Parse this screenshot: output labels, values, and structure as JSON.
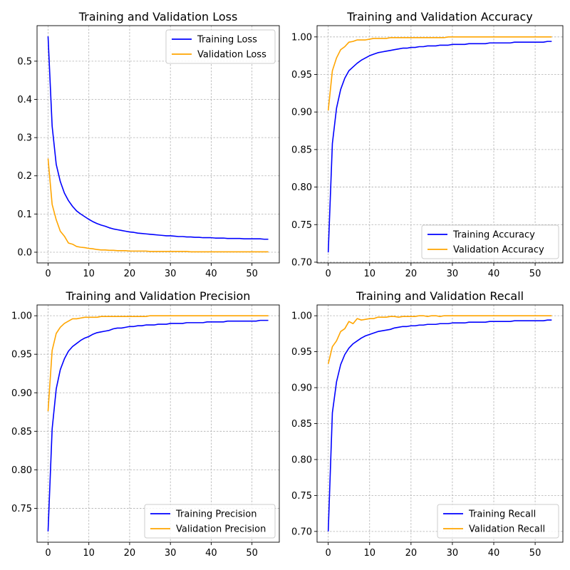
{
  "chart_data": [
    {
      "type": "line",
      "title": "Training and Validation Loss",
      "xlabel": "",
      "ylabel": "",
      "xlim": [
        -2.7,
        56.7
      ],
      "ylim": [
        -0.028,
        0.593
      ],
      "xticks": [
        0,
        10,
        20,
        30,
        40,
        50
      ],
      "yticks": [
        0.0,
        0.1,
        0.2,
        0.3,
        0.4,
        0.5
      ],
      "ytick_labels": [
        "0.0",
        "0.1",
        "0.2",
        "0.3",
        "0.4",
        "0.5"
      ],
      "grid": true,
      "legend_position": "upper right",
      "series": [
        {
          "name": "Training Loss",
          "color": "#0000ff",
          "x": [
            0,
            1,
            2,
            3,
            4,
            5,
            6,
            7,
            8,
            9,
            10,
            11,
            12,
            13,
            14,
            15,
            16,
            17,
            18,
            19,
            20,
            21,
            22,
            23,
            24,
            25,
            26,
            27,
            28,
            29,
            30,
            31,
            32,
            33,
            34,
            35,
            36,
            37,
            38,
            39,
            40,
            41,
            42,
            43,
            44,
            45,
            46,
            47,
            48,
            49,
            50,
            51,
            52,
            53,
            54
          ],
          "values": [
            0.565,
            0.33,
            0.23,
            0.185,
            0.155,
            0.135,
            0.12,
            0.108,
            0.1,
            0.093,
            0.086,
            0.08,
            0.075,
            0.071,
            0.068,
            0.064,
            0.061,
            0.059,
            0.057,
            0.055,
            0.053,
            0.052,
            0.05,
            0.049,
            0.048,
            0.047,
            0.046,
            0.045,
            0.044,
            0.043,
            0.043,
            0.042,
            0.041,
            0.041,
            0.04,
            0.04,
            0.039,
            0.039,
            0.038,
            0.038,
            0.038,
            0.037,
            0.037,
            0.037,
            0.036,
            0.036,
            0.036,
            0.036,
            0.035,
            0.035,
            0.035,
            0.035,
            0.035,
            0.034,
            0.034
          ]
        },
        {
          "name": "Validation Loss",
          "color": "#ffa500",
          "x": [
            0,
            1,
            2,
            3,
            4,
            5,
            6,
            7,
            8,
            9,
            10,
            11,
            12,
            13,
            14,
            15,
            16,
            17,
            18,
            19,
            20,
            21,
            22,
            23,
            24,
            25,
            26,
            27,
            28,
            29,
            30,
            31,
            32,
            33,
            34,
            35,
            36,
            37,
            38,
            39,
            40,
            41,
            42,
            43,
            44,
            45,
            46,
            47,
            48,
            49,
            50,
            51,
            52,
            53,
            54
          ],
          "values": [
            0.245,
            0.125,
            0.085,
            0.055,
            0.042,
            0.024,
            0.021,
            0.015,
            0.013,
            0.012,
            0.01,
            0.009,
            0.007,
            0.006,
            0.006,
            0.005,
            0.005,
            0.004,
            0.004,
            0.004,
            0.003,
            0.003,
            0.003,
            0.003,
            0.003,
            0.002,
            0.002,
            0.002,
            0.002,
            0.002,
            0.002,
            0.002,
            0.002,
            0.002,
            0.002,
            0.001,
            0.001,
            0.001,
            0.001,
            0.001,
            0.001,
            0.001,
            0.001,
            0.001,
            0.001,
            0.001,
            0.001,
            0.001,
            0.001,
            0.001,
            0.001,
            0.001,
            0.001,
            0.001,
            0.001
          ]
        }
      ]
    },
    {
      "type": "line",
      "title": "Training and Validation Accuracy",
      "xlabel": "",
      "ylabel": "",
      "xlim": [
        -2.7,
        56.7
      ],
      "ylim": [
        0.699,
        1.015
      ],
      "xticks": [
        0,
        10,
        20,
        30,
        40,
        50
      ],
      "yticks": [
        0.7,
        0.75,
        0.8,
        0.85,
        0.9,
        0.95,
        1.0
      ],
      "ytick_labels": [
        "0.70",
        "0.75",
        "0.80",
        "0.85",
        "0.90",
        "0.95",
        "1.00"
      ],
      "grid": true,
      "legend_position": "lower right",
      "series": [
        {
          "name": "Training Accuracy",
          "color": "#0000ff",
          "x": [
            0,
            1,
            2,
            3,
            4,
            5,
            6,
            7,
            8,
            9,
            10,
            11,
            12,
            13,
            14,
            15,
            16,
            17,
            18,
            19,
            20,
            21,
            22,
            23,
            24,
            25,
            26,
            27,
            28,
            29,
            30,
            31,
            32,
            33,
            34,
            35,
            36,
            37,
            38,
            39,
            40,
            41,
            42,
            43,
            44,
            45,
            46,
            47,
            48,
            49,
            50,
            51,
            52,
            53,
            54
          ],
          "values": [
            0.713,
            0.858,
            0.905,
            0.93,
            0.945,
            0.955,
            0.96,
            0.965,
            0.969,
            0.972,
            0.975,
            0.977,
            0.979,
            0.98,
            0.981,
            0.982,
            0.983,
            0.984,
            0.985,
            0.985,
            0.986,
            0.986,
            0.987,
            0.987,
            0.988,
            0.988,
            0.988,
            0.989,
            0.989,
            0.989,
            0.99,
            0.99,
            0.99,
            0.99,
            0.991,
            0.991,
            0.991,
            0.991,
            0.991,
            0.992,
            0.992,
            0.992,
            0.992,
            0.992,
            0.992,
            0.993,
            0.993,
            0.993,
            0.993,
            0.993,
            0.993,
            0.993,
            0.993,
            0.994,
            0.994
          ]
        },
        {
          "name": "Validation Accuracy",
          "color": "#ffa500",
          "x": [
            0,
            1,
            2,
            3,
            4,
            5,
            6,
            7,
            8,
            9,
            10,
            11,
            12,
            13,
            14,
            15,
            16,
            17,
            18,
            19,
            20,
            21,
            22,
            23,
            24,
            25,
            26,
            27,
            28,
            29,
            30,
            31,
            32,
            33,
            34,
            35,
            36,
            37,
            38,
            39,
            40,
            41,
            42,
            43,
            44,
            45,
            46,
            47,
            48,
            49,
            50,
            51,
            52,
            53,
            54
          ],
          "values": [
            0.902,
            0.955,
            0.972,
            0.983,
            0.987,
            0.993,
            0.994,
            0.996,
            0.996,
            0.996,
            0.997,
            0.998,
            0.998,
            0.998,
            0.998,
            0.999,
            0.999,
            0.999,
            0.999,
            0.999,
            0.999,
            0.999,
            0.999,
            0.999,
            0.999,
            0.999,
            0.999,
            0.999,
            0.999,
            1.0,
            1.0,
            1.0,
            1.0,
            1.0,
            1.0,
            1.0,
            1.0,
            1.0,
            1.0,
            1.0,
            1.0,
            1.0,
            1.0,
            1.0,
            1.0,
            1.0,
            1.0,
            1.0,
            1.0,
            1.0,
            1.0,
            1.0,
            1.0,
            1.0,
            1.0
          ]
        }
      ]
    },
    {
      "type": "line",
      "title": "Training and Validation Precision",
      "xlabel": "",
      "ylabel": "",
      "xlim": [
        -2.7,
        56.7
      ],
      "ylim": [
        0.706,
        1.014
      ],
      "xticks": [
        0,
        10,
        20,
        30,
        40,
        50
      ],
      "yticks": [
        0.75,
        0.8,
        0.85,
        0.9,
        0.95,
        1.0
      ],
      "ytick_labels": [
        "0.75",
        "0.80",
        "0.85",
        "0.90",
        "0.95",
        "1.00"
      ],
      "grid": true,
      "legend_position": "lower right",
      "series": [
        {
          "name": "Training Precision",
          "color": "#0000ff",
          "x": [
            0,
            1,
            2,
            3,
            4,
            5,
            6,
            7,
            8,
            9,
            10,
            11,
            12,
            13,
            14,
            15,
            16,
            17,
            18,
            19,
            20,
            21,
            22,
            23,
            24,
            25,
            26,
            27,
            28,
            29,
            30,
            31,
            32,
            33,
            34,
            35,
            36,
            37,
            38,
            39,
            40,
            41,
            42,
            43,
            44,
            45,
            46,
            47,
            48,
            49,
            50,
            51,
            52,
            53,
            54
          ],
          "values": [
            0.72,
            0.853,
            0.905,
            0.93,
            0.944,
            0.954,
            0.96,
            0.964,
            0.968,
            0.971,
            0.973,
            0.976,
            0.978,
            0.979,
            0.98,
            0.981,
            0.983,
            0.984,
            0.984,
            0.985,
            0.986,
            0.986,
            0.987,
            0.987,
            0.988,
            0.988,
            0.988,
            0.989,
            0.989,
            0.989,
            0.99,
            0.99,
            0.99,
            0.99,
            0.991,
            0.991,
            0.991,
            0.991,
            0.991,
            0.992,
            0.992,
            0.992,
            0.992,
            0.992,
            0.993,
            0.993,
            0.993,
            0.993,
            0.993,
            0.993,
            0.993,
            0.993,
            0.994,
            0.994,
            0.994
          ]
        },
        {
          "name": "Validation Precision",
          "color": "#ffa500",
          "x": [
            0,
            1,
            2,
            3,
            4,
            5,
            6,
            7,
            8,
            9,
            10,
            11,
            12,
            13,
            14,
            15,
            16,
            17,
            18,
            19,
            20,
            21,
            22,
            23,
            24,
            25,
            26,
            27,
            28,
            29,
            30,
            31,
            32,
            33,
            34,
            35,
            36,
            37,
            38,
            39,
            40,
            41,
            42,
            43,
            44,
            45,
            46,
            47,
            48,
            49,
            50,
            51,
            52,
            53,
            54
          ],
          "values": [
            0.876,
            0.955,
            0.977,
            0.985,
            0.99,
            0.993,
            0.996,
            0.996,
            0.997,
            0.998,
            0.998,
            0.998,
            0.998,
            0.999,
            0.999,
            0.999,
            0.999,
            0.999,
            0.999,
            0.999,
            0.999,
            0.999,
            0.999,
            0.999,
            0.999,
            1.0,
            1.0,
            1.0,
            1.0,
            1.0,
            1.0,
            1.0,
            1.0,
            1.0,
            1.0,
            1.0,
            1.0,
            1.0,
            1.0,
            1.0,
            1.0,
            1.0,
            1.0,
            1.0,
            1.0,
            1.0,
            1.0,
            1.0,
            1.0,
            1.0,
            1.0,
            1.0,
            1.0,
            1.0,
            1.0
          ]
        }
      ]
    },
    {
      "type": "line",
      "title": "Training and Validation Recall",
      "xlabel": "",
      "ylabel": "",
      "xlim": [
        -2.7,
        56.7
      ],
      "ylim": [
        0.685,
        1.015
      ],
      "xticks": [
        0,
        10,
        20,
        30,
        40,
        50
      ],
      "yticks": [
        0.7,
        0.75,
        0.8,
        0.85,
        0.9,
        0.95,
        1.0
      ],
      "ytick_labels": [
        "0.70",
        "0.75",
        "0.80",
        "0.85",
        "0.90",
        "0.95",
        "1.00"
      ],
      "grid": true,
      "legend_position": "lower right",
      "series": [
        {
          "name": "Training Recall",
          "color": "#0000ff",
          "x": [
            0,
            1,
            2,
            3,
            4,
            5,
            6,
            7,
            8,
            9,
            10,
            11,
            12,
            13,
            14,
            15,
            16,
            17,
            18,
            19,
            20,
            21,
            22,
            23,
            24,
            25,
            26,
            27,
            28,
            29,
            30,
            31,
            32,
            33,
            34,
            35,
            36,
            37,
            38,
            39,
            40,
            41,
            42,
            43,
            44,
            45,
            46,
            47,
            48,
            49,
            50,
            51,
            52,
            53,
            54
          ],
          "values": [
            0.7,
            0.865,
            0.908,
            0.932,
            0.946,
            0.955,
            0.961,
            0.965,
            0.969,
            0.972,
            0.974,
            0.976,
            0.978,
            0.979,
            0.98,
            0.981,
            0.983,
            0.984,
            0.985,
            0.985,
            0.986,
            0.986,
            0.987,
            0.987,
            0.988,
            0.988,
            0.988,
            0.989,
            0.989,
            0.989,
            0.99,
            0.99,
            0.99,
            0.99,
            0.991,
            0.991,
            0.991,
            0.991,
            0.991,
            0.992,
            0.992,
            0.992,
            0.992,
            0.992,
            0.992,
            0.993,
            0.993,
            0.993,
            0.993,
            0.993,
            0.993,
            0.993,
            0.993,
            0.994,
            0.994
          ]
        },
        {
          "name": "Validation Recall",
          "color": "#ffa500",
          "x": [
            0,
            1,
            2,
            3,
            4,
            5,
            6,
            7,
            8,
            9,
            10,
            11,
            12,
            13,
            14,
            15,
            16,
            17,
            18,
            19,
            20,
            21,
            22,
            23,
            24,
            25,
            26,
            27,
            28,
            29,
            30,
            31,
            32,
            33,
            34,
            35,
            36,
            37,
            38,
            39,
            40,
            41,
            42,
            43,
            44,
            45,
            46,
            47,
            48,
            49,
            50,
            51,
            52,
            53,
            54
          ],
          "values": [
            0.933,
            0.957,
            0.965,
            0.978,
            0.982,
            0.992,
            0.989,
            0.996,
            0.994,
            0.995,
            0.996,
            0.996,
            0.998,
            0.998,
            0.998,
            0.999,
            0.999,
            0.998,
            0.999,
            0.999,
            0.999,
            0.999,
            1.0,
            1.0,
            0.999,
            1.0,
            1.0,
            0.999,
            1.0,
            1.0,
            1.0,
            1.0,
            1.0,
            1.0,
            1.0,
            1.0,
            1.0,
            1.0,
            1.0,
            1.0,
            1.0,
            1.0,
            1.0,
            1.0,
            1.0,
            1.0,
            1.0,
            1.0,
            1.0,
            1.0,
            1.0,
            1.0,
            1.0,
            1.0,
            1.0
          ]
        }
      ]
    }
  ]
}
